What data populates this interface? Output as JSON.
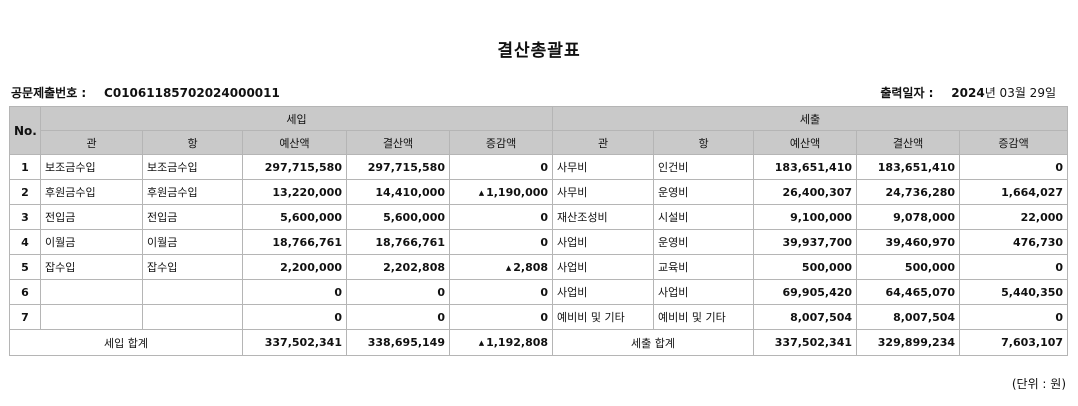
{
  "title": "결산총괄표",
  "meta": {
    "doc_no_label": "공문제출번호 :",
    "doc_no_value": "C01061185702024000011",
    "print_date_label": "출력일자 :",
    "print_year": "2024",
    "print_date_rest": "년 03월 29일"
  },
  "headers": {
    "no": "No.",
    "income": "세입",
    "expense": "세출",
    "gwan": "관",
    "hang": "항",
    "budget": "예산액",
    "settled": "결산액",
    "diff": "증감액"
  },
  "rows": [
    {
      "no": "1",
      "in_gwan": "보조금수입",
      "in_hang": "보조금수입",
      "in_budget": "297,715,580",
      "in_settled": "297,715,580",
      "in_diff_up": "",
      "in_diff": "0",
      "ex_gwan": "사무비",
      "ex_hang": "인건비",
      "ex_budget": "183,651,410",
      "ex_settled": "183,651,410",
      "ex_diff": "0"
    },
    {
      "no": "2",
      "in_gwan": "후원금수입",
      "in_hang": "후원금수입",
      "in_budget": "13,220,000",
      "in_settled": "14,410,000",
      "in_diff_up": "▲",
      "in_diff": "1,190,000",
      "ex_gwan": "사무비",
      "ex_hang": "운영비",
      "ex_budget": "26,400,307",
      "ex_settled": "24,736,280",
      "ex_diff": "1,664,027"
    },
    {
      "no": "3",
      "in_gwan": "전입금",
      "in_hang": "전입금",
      "in_budget": "5,600,000",
      "in_settled": "5,600,000",
      "in_diff_up": "",
      "in_diff": "0",
      "ex_gwan": "재산조성비",
      "ex_hang": "시설비",
      "ex_budget": "9,100,000",
      "ex_settled": "9,078,000",
      "ex_diff": "22,000"
    },
    {
      "no": "4",
      "in_gwan": "이월금",
      "in_hang": "이월금",
      "in_budget": "18,766,761",
      "in_settled": "18,766,761",
      "in_diff_up": "",
      "in_diff": "0",
      "ex_gwan": "사업비",
      "ex_hang": "운영비",
      "ex_budget": "39,937,700",
      "ex_settled": "39,460,970",
      "ex_diff": "476,730"
    },
    {
      "no": "5",
      "in_gwan": "잡수입",
      "in_hang": "잡수입",
      "in_budget": "2,200,000",
      "in_settled": "2,202,808",
      "in_diff_up": "▲",
      "in_diff": "2,808",
      "ex_gwan": "사업비",
      "ex_hang": "교육비",
      "ex_budget": "500,000",
      "ex_settled": "500,000",
      "ex_diff": "0"
    },
    {
      "no": "6",
      "in_gwan": "",
      "in_hang": "",
      "in_budget": "0",
      "in_settled": "0",
      "in_diff_up": "",
      "in_diff": "0",
      "ex_gwan": "사업비",
      "ex_hang": "사업비",
      "ex_budget": "69,905,420",
      "ex_settled": "64,465,070",
      "ex_diff": "5,440,350"
    },
    {
      "no": "7",
      "in_gwan": "",
      "in_hang": "",
      "in_budget": "0",
      "in_settled": "0",
      "in_diff_up": "",
      "in_diff": "0",
      "ex_gwan": "예비비 및 기타",
      "ex_hang": "예비비 및 기타",
      "ex_budget": "8,007,504",
      "ex_settled": "8,007,504",
      "ex_diff": "0"
    }
  ],
  "totals": {
    "in_label": "세입 합계",
    "in_budget": "337,502,341",
    "in_settled": "338,695,149",
    "in_diff_up": "▲",
    "in_diff": "1,192,808",
    "ex_label": "세출 합계",
    "ex_budget": "337,502,341",
    "ex_settled": "329,899,234",
    "ex_diff": "7,603,107"
  },
  "unit_note": "(단위 : 원)"
}
